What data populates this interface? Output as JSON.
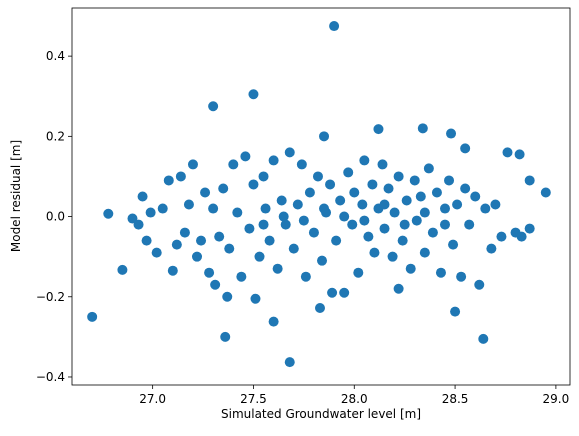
{
  "chart_data": {
    "type": "scatter",
    "x_label": "Simulated Groundwater level [m]",
    "y_label": "Model residual [m]",
    "color": "#1f77b4",
    "x": [
      27.9,
      27.5,
      27.3,
      26.7,
      27.68,
      28.64,
      27.36,
      28.5,
      27.6,
      28.95,
      28.87,
      26.78,
      26.85,
      28.82,
      28.87,
      27.85,
      28.12,
      28.34,
      28.48,
      28.55,
      28.22,
      27.83,
      26.9,
      26.93,
      26.95,
      26.97,
      26.99,
      27.02,
      27.05,
      27.08,
      27.1,
      27.12,
      27.14,
      27.16,
      27.18,
      27.2,
      27.22,
      27.24,
      27.26,
      27.28,
      27.3,
      27.31,
      27.33,
      27.35,
      27.37,
      27.38,
      27.4,
      27.42,
      27.44,
      27.46,
      27.48,
      27.5,
      27.51,
      27.53,
      27.55,
      27.56,
      27.58,
      27.6,
      27.62,
      27.64,
      27.66,
      27.68,
      27.7,
      27.72,
      27.74,
      27.76,
      27.78,
      27.8,
      27.82,
      27.84,
      27.86,
      27.88,
      27.89,
      27.91,
      27.93,
      27.95,
      27.97,
      27.99,
      28.0,
      28.02,
      28.04,
      28.05,
      28.07,
      28.09,
      28.1,
      28.12,
      28.14,
      28.15,
      28.17,
      28.19,
      28.2,
      28.22,
      28.24,
      28.26,
      28.28,
      28.3,
      28.31,
      28.33,
      28.35,
      28.37,
      28.39,
      28.41,
      28.43,
      28.45,
      28.47,
      28.49,
      28.51,
      28.53,
      28.55,
      28.57,
      28.6,
      28.62,
      28.65,
      28.68,
      28.7,
      28.73,
      28.76,
      28.8,
      28.83,
      27.85,
      27.95,
      28.05,
      28.15,
      28.25,
      28.35,
      27.75,
      27.65,
      28.45,
      27.55
    ],
    "y": [
      0.475,
      0.305,
      0.275,
      -0.25,
      -0.363,
      -0.305,
      -0.3,
      -0.237,
      -0.262,
      0.06,
      -0.03,
      0.007,
      -0.133,
      0.155,
      0.09,
      0.2,
      0.218,
      0.22,
      0.207,
      0.17,
      -0.18,
      -0.228,
      -0.005,
      -0.02,
      0.05,
      -0.06,
      0.01,
      -0.09,
      0.02,
      0.09,
      -0.135,
      -0.07,
      0.1,
      -0.04,
      0.03,
      0.13,
      -0.1,
      -0.06,
      0.06,
      -0.14,
      0.02,
      -0.17,
      -0.05,
      0.07,
      -0.2,
      -0.08,
      0.13,
      0.01,
      -0.15,
      0.15,
      -0.03,
      0.08,
      -0.205,
      -0.1,
      0.1,
      0.02,
      -0.06,
      0.14,
      -0.13,
      0.04,
      -0.02,
      0.16,
      -0.08,
      0.03,
      0.13,
      -0.15,
      0.06,
      -0.04,
      0.1,
      -0.11,
      0.01,
      0.08,
      -0.19,
      -0.06,
      0.04,
      -0.19,
      0.11,
      -0.02,
      0.06,
      -0.14,
      0.03,
      0.14,
      -0.05,
      0.08,
      -0.09,
      0.02,
      0.13,
      -0.03,
      0.07,
      -0.1,
      0.01,
      0.1,
      -0.06,
      0.04,
      -0.13,
      0.09,
      -0.01,
      0.05,
      -0.09,
      0.12,
      -0.04,
      0.06,
      -0.14,
      0.02,
      0.09,
      -0.07,
      0.03,
      -0.15,
      0.07,
      -0.02,
      0.05,
      -0.17,
      0.02,
      -0.08,
      0.03,
      -0.05,
      0.16,
      -0.04,
      -0.05,
      0.02,
      0.0,
      -0.01,
      0.03,
      -0.02,
      0.01,
      -0.01,
      0.0,
      -0.02,
      -0.02
    ],
    "xlim": [
      26.6,
      29.07
    ],
    "ylim": [
      -0.42,
      0.52
    ],
    "xticks": [
      {
        "value": 27,
        "label": "27.0"
      },
      {
        "value": 27.5,
        "label": "27.5"
      },
      {
        "value": 28,
        "label": "28.0"
      },
      {
        "value": 28.5,
        "label": "28.5"
      },
      {
        "value": 29,
        "label": "29.0"
      }
    ],
    "yticks": [
      {
        "value": -0.4,
        "label": "−0.4"
      },
      {
        "value": -0.2,
        "label": "−0.2"
      },
      {
        "value": 0,
        "label": "0.0"
      },
      0.2,
      0.4
    ]
  }
}
